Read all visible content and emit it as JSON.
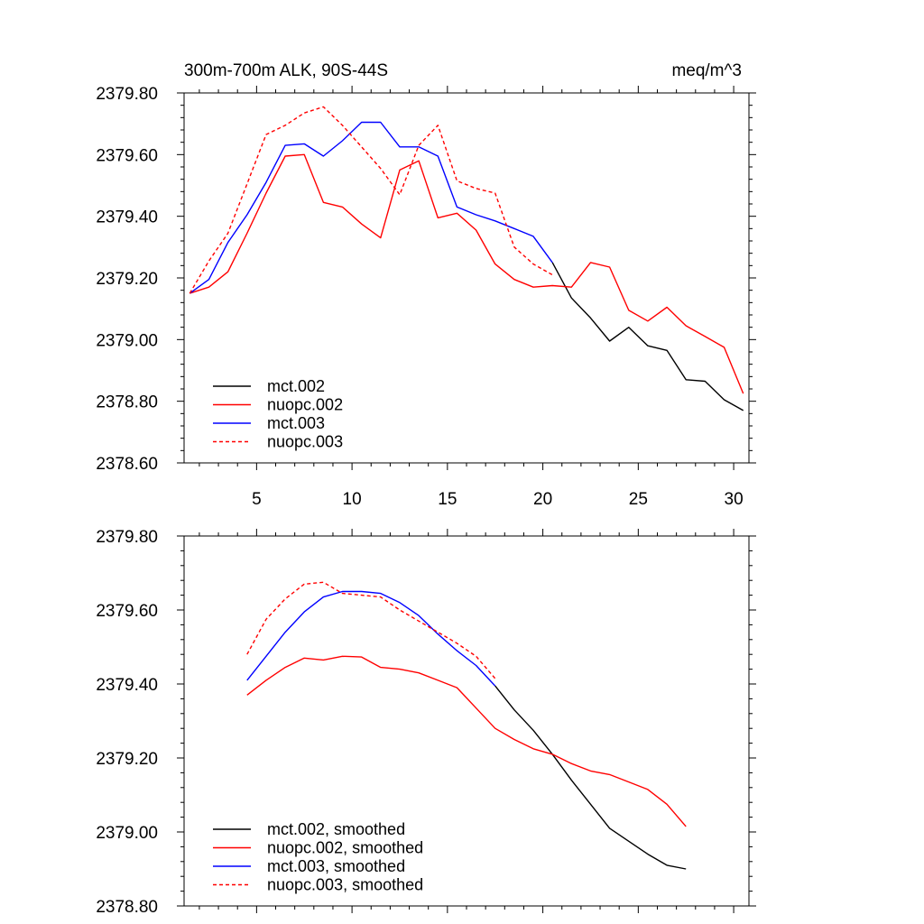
{
  "chart_data": [
    {
      "type": "line",
      "title_left": "300m-700m ALK, 90S-44S",
      "title_right": "meq/m^3",
      "xlim": [
        1.2,
        30.8
      ],
      "ylim": [
        2378.6,
        2379.8
      ],
      "yticks": [
        "2379.80",
        "2379.60",
        "2379.40",
        "2379.20",
        "2379.00",
        "2378.80",
        "2378.60"
      ],
      "xticks": [
        "5",
        "10",
        "15",
        "20",
        "25",
        "30"
      ],
      "series": [
        {
          "name": "mct.002",
          "color": "#000000",
          "dash": "solid",
          "x": [
            20.5,
            21.5,
            22.5,
            23.5,
            24.5,
            25.5,
            26.5,
            27.5,
            28.5,
            29.5,
            30.5
          ],
          "y": [
            2379.25,
            2379.135,
            2379.07,
            2378.995,
            2379.04,
            2378.98,
            2378.965,
            2378.87,
            2378.865,
            2378.805,
            2378.77
          ]
        },
        {
          "name": "nuopc.002",
          "color": "#ff0000",
          "dash": "solid",
          "x": [
            1.5,
            2.5,
            3.5,
            4.5,
            5.5,
            6.5,
            7.5,
            8.5,
            9.5,
            10.5,
            11.5,
            12.5,
            13.5,
            14.5,
            15.5,
            16.5,
            17.5,
            18.5,
            19.5,
            20.5,
            21.5,
            22.5,
            23.5,
            24.5,
            25.5,
            26.5,
            27.5,
            28.5,
            29.5,
            30.5
          ],
          "y": [
            2379.15,
            2379.17,
            2379.22,
            2379.345,
            2379.475,
            2379.595,
            2379.6,
            2379.445,
            2379.43,
            2379.375,
            2379.33,
            2379.55,
            2379.58,
            2379.395,
            2379.41,
            2379.355,
            2379.245,
            2379.195,
            2379.17,
            2379.175,
            2379.17,
            2379.25,
            2379.235,
            2379.095,
            2379.06,
            2379.105,
            2379.045,
            2379.01,
            2378.975,
            2378.825
          ]
        },
        {
          "name": "mct.003",
          "color": "#0000ff",
          "dash": "solid",
          "x": [
            1.5,
            2.5,
            3.5,
            4.5,
            5.5,
            6.5,
            7.5,
            8.5,
            9.5,
            10.5,
            11.5,
            12.5,
            13.5,
            14.5,
            15.5,
            16.5,
            17.5,
            18.5,
            19.5,
            20.5
          ],
          "y": [
            2379.15,
            2379.195,
            2379.315,
            2379.405,
            2379.51,
            2379.63,
            2379.635,
            2379.595,
            2379.645,
            2379.705,
            2379.705,
            2379.625,
            2379.625,
            2379.595,
            2379.43,
            2379.405,
            2379.385,
            2379.36,
            2379.335,
            2379.25
          ]
        },
        {
          "name": "nuopc.003",
          "color": "#ff0000",
          "dash": "dashed",
          "x": [
            1.5,
            2.5,
            3.5,
            4.5,
            5.5,
            6.5,
            7.5,
            8.5,
            9.5,
            10.5,
            11.5,
            12.5,
            13.5,
            14.5,
            15.5,
            16.5,
            17.5,
            18.5,
            19.5,
            20.5
          ],
          "y": [
            2379.15,
            2379.255,
            2379.345,
            2379.505,
            2379.665,
            2379.695,
            2379.735,
            2379.755,
            2379.695,
            2379.625,
            2379.555,
            2379.47,
            2379.63,
            2379.695,
            2379.515,
            2379.49,
            2379.475,
            2379.3,
            2379.245,
            2379.21
          ]
        }
      ]
    },
    {
      "type": "line",
      "xlim": [
        1.2,
        30.8
      ],
      "ylim": [
        2378.8,
        2379.8
      ],
      "yticks": [
        "2379.80",
        "2379.60",
        "2379.40",
        "2379.20",
        "2379.00",
        "2378.80"
      ],
      "series": [
        {
          "name": "mct.002, smoothed",
          "color": "#000000",
          "dash": "solid",
          "x": [
            17.5,
            18.5,
            19.5,
            20.5,
            21.5,
            22.5,
            23.5,
            24.5,
            25.5,
            26.5,
            27.5
          ],
          "y": [
            2379.395,
            2379.33,
            2379.275,
            2379.21,
            2379.14,
            2379.075,
            2379.01,
            2378.975,
            2378.94,
            2378.91,
            2378.9
          ]
        },
        {
          "name": "nuopc.002, smoothed",
          "color": "#ff0000",
          "dash": "solid",
          "x": [
            4.5,
            5.5,
            6.5,
            7.5,
            8.5,
            9.5,
            10.5,
            11.5,
            12.5,
            13.5,
            14.5,
            15.5,
            16.5,
            17.5,
            18.5,
            19.5,
            20.5,
            21.5,
            22.5,
            23.5,
            24.5,
            25.5,
            26.5,
            27.5
          ],
          "y": [
            2379.37,
            2379.41,
            2379.445,
            2379.47,
            2379.465,
            2379.475,
            2379.473,
            2379.445,
            2379.44,
            2379.43,
            2379.41,
            2379.39,
            2379.335,
            2379.28,
            2379.25,
            2379.225,
            2379.21,
            2379.185,
            2379.165,
            2379.155,
            2379.135,
            2379.115,
            2379.075,
            2379.015
          ]
        },
        {
          "name": "mct.003, smoothed",
          "color": "#0000ff",
          "dash": "solid",
          "x": [
            4.5,
            5.5,
            6.5,
            7.5,
            8.5,
            9.5,
            10.5,
            11.5,
            12.5,
            13.5,
            14.5,
            15.5,
            16.5,
            17.5
          ],
          "y": [
            2379.41,
            2379.475,
            2379.54,
            2379.595,
            2379.635,
            2379.65,
            2379.65,
            2379.645,
            2379.62,
            2379.585,
            2379.535,
            2379.49,
            2379.45,
            2379.395
          ]
        },
        {
          "name": "nuopc.003, smoothed",
          "color": "#ff0000",
          "dash": "dashed",
          "x": [
            4.5,
            5.5,
            6.5,
            7.5,
            8.5,
            9.5,
            10.5,
            11.5,
            12.5,
            13.5,
            14.5,
            15.5,
            16.5,
            17.5
          ],
          "y": [
            2379.48,
            2379.575,
            2379.63,
            2379.67,
            2379.675,
            2379.645,
            2379.64,
            2379.635,
            2379.6,
            2379.57,
            2379.54,
            2379.51,
            2379.475,
            2379.415
          ]
        }
      ]
    }
  ]
}
